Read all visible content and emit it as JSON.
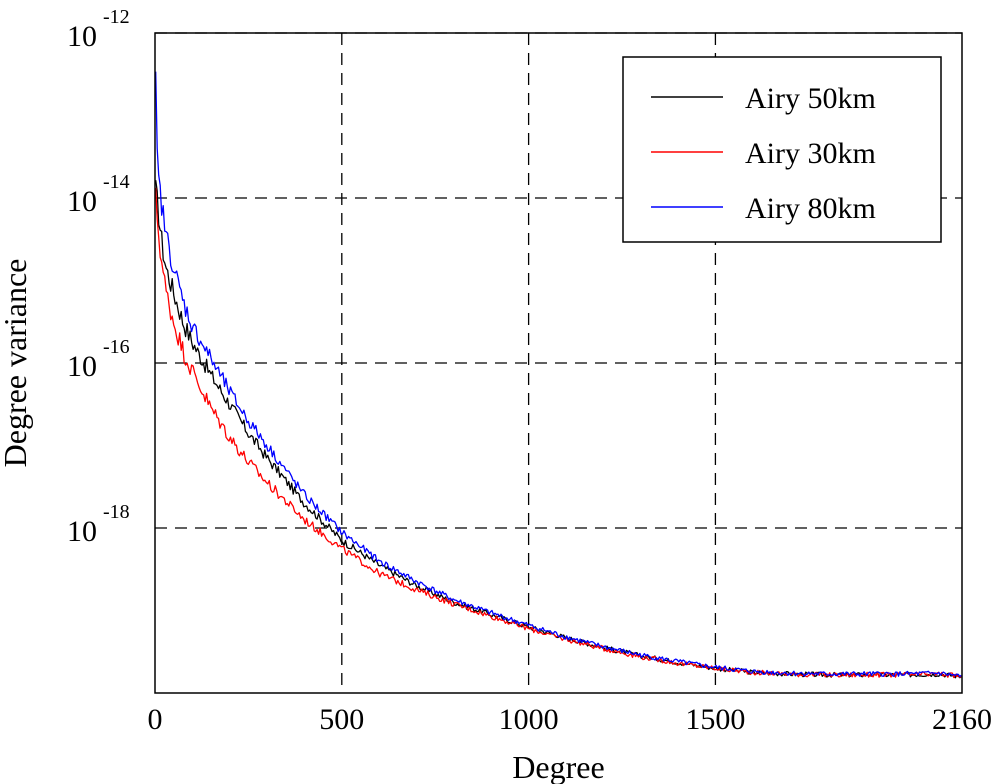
{
  "chart_data": {
    "type": "line",
    "x_scale": "linear",
    "y_scale": "log",
    "xlabel": "Degree",
    "ylabel": "Degree variance",
    "xlim": [
      0,
      2160
    ],
    "ylim_exponent": [
      -20,
      -12
    ],
    "x_ticks": [
      {
        "value": 0,
        "label": "0"
      },
      {
        "value": 500,
        "label": "500"
      },
      {
        "value": 1000,
        "label": "1000"
      },
      {
        "value": 1500,
        "label": "1500"
      },
      {
        "value": 2160,
        "label": "2160"
      }
    ],
    "y_ticks": [
      {
        "exponent": -12,
        "base": "10",
        "exp_label": "-12"
      },
      {
        "exponent": -14,
        "base": "10",
        "exp_label": "-14"
      },
      {
        "exponent": -16,
        "base": "10",
        "exp_label": "-16"
      },
      {
        "exponent": -18,
        "base": "10",
        "exp_label": "-18"
      }
    ],
    "grid": true,
    "legend_position": "top-right",
    "series": [
      {
        "name": "Airy 50km",
        "color": "#000000",
        "x": [
          2,
          5,
          10,
          20,
          30,
          50,
          75,
          100,
          150,
          200,
          250,
          300,
          400,
          500,
          600,
          700,
          800,
          900,
          1000,
          1100,
          1200,
          1300,
          1400,
          1500,
          1600,
          1700,
          1800,
          1900,
          2000,
          2100,
          2160
        ],
        "log10_y": [
          -13.9,
          -14.0,
          -14.2,
          -14.6,
          -14.85,
          -15.15,
          -15.5,
          -15.75,
          -16.15,
          -16.5,
          -16.85,
          -17.15,
          -17.7,
          -18.15,
          -18.45,
          -18.7,
          -18.9,
          -19.05,
          -19.2,
          -19.33,
          -19.45,
          -19.55,
          -19.63,
          -19.7,
          -19.75,
          -19.77,
          -19.78,
          -19.78,
          -19.78,
          -19.77,
          -19.8
        ]
      },
      {
        "name": "Airy 30km",
        "color": "#ff0000",
        "x": [
          2,
          5,
          10,
          20,
          30,
          50,
          75,
          100,
          150,
          200,
          250,
          300,
          400,
          500,
          600,
          700,
          800,
          900,
          1000,
          1100,
          1200,
          1300,
          1400,
          1500,
          1600,
          1700,
          1800,
          1900,
          2000,
          2100,
          2160
        ],
        "log10_y": [
          -14.0,
          -14.15,
          -14.45,
          -14.85,
          -15.15,
          -15.5,
          -15.85,
          -16.1,
          -16.55,
          -16.9,
          -17.2,
          -17.45,
          -17.9,
          -18.25,
          -18.55,
          -18.75,
          -18.92,
          -19.07,
          -19.22,
          -19.35,
          -19.46,
          -19.56,
          -19.64,
          -19.7,
          -19.75,
          -19.77,
          -19.78,
          -19.78,
          -19.78,
          -19.77,
          -19.8
        ]
      },
      {
        "name": "Airy 80km",
        "color": "#0000ff",
        "x": [
          2,
          5,
          10,
          20,
          30,
          50,
          75,
          100,
          150,
          200,
          250,
          300,
          400,
          500,
          600,
          700,
          800,
          900,
          1000,
          1100,
          1200,
          1300,
          1400,
          1500,
          1600,
          1700,
          1800,
          1900,
          2000,
          2100,
          2160
        ],
        "log10_y": [
          -12.6,
          -13.4,
          -13.8,
          -14.15,
          -14.45,
          -14.85,
          -15.25,
          -15.55,
          -15.95,
          -16.35,
          -16.7,
          -17.0,
          -17.6,
          -18.05,
          -18.4,
          -18.65,
          -18.87,
          -19.03,
          -19.18,
          -19.32,
          -19.44,
          -19.54,
          -19.62,
          -19.69,
          -19.74,
          -19.76,
          -19.77,
          -19.77,
          -19.77,
          -19.76,
          -19.8
        ]
      }
    ]
  }
}
